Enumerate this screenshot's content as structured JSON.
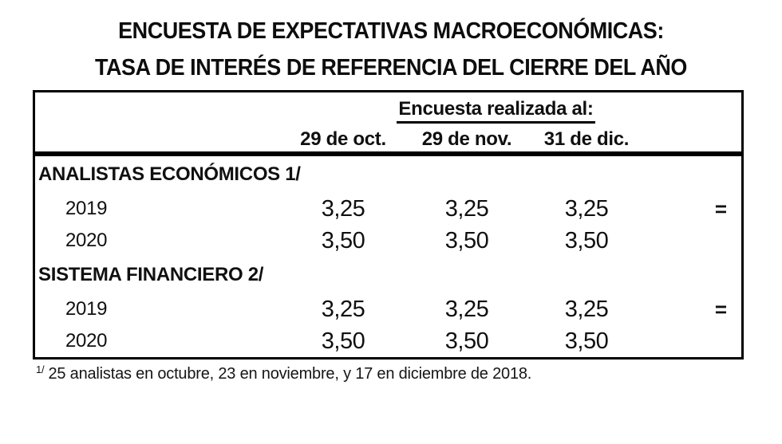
{
  "title": {
    "line1": "ENCUESTA DE EXPECTATIVAS MACROECONÓMICAS:",
    "line2": "TASA DE INTERÉS DE REFERENCIA DEL CIERRE DEL AÑO"
  },
  "table": {
    "header": {
      "survey_label": "Encuesta realizada al:",
      "columns": [
        "29 de oct.",
        "29 de nov.",
        "31 de dic."
      ]
    },
    "sections": [
      {
        "label": "ANALISTAS ECONÓMICOS 1/",
        "rows": [
          {
            "year": "2019",
            "values": [
              "3,25",
              "3,25",
              "3,25"
            ],
            "marker": "="
          },
          {
            "year": "2020",
            "values": [
              "3,50",
              "3,50",
              "3,50"
            ],
            "marker": ""
          }
        ]
      },
      {
        "label": "SISTEMA FINANCIERO 2/",
        "rows": [
          {
            "year": "2019",
            "values": [
              "3,25",
              "3,25",
              "3,25"
            ],
            "marker": "="
          },
          {
            "year": "2020",
            "values": [
              "3,50",
              "3,50",
              "3,50"
            ],
            "marker": ""
          }
        ]
      }
    ]
  },
  "footnote": {
    "marker": "1/",
    "text": "25 analistas en octubre, 23 en noviembre, y 17 en diciembre de 2018."
  },
  "colors": {
    "background": "#ffffff",
    "text": "#101010",
    "border": "#000000"
  }
}
